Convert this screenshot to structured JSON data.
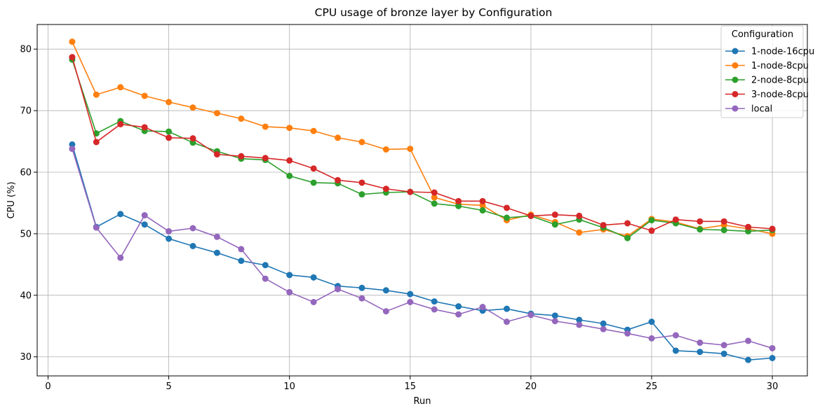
{
  "chart_data": {
    "type": "line",
    "title": "CPU usage of bronze layer by Configuration",
    "xlabel": "Run",
    "ylabel": "CPU (%)",
    "xlim": [
      -0.45,
      31.45
    ],
    "ylim": [
      26.9,
      84.0
    ],
    "xticks": [
      0,
      5,
      10,
      15,
      20,
      25,
      30
    ],
    "yticks": [
      30,
      40,
      50,
      60,
      70,
      80
    ],
    "grid": true,
    "legend": {
      "title": "Configuration",
      "placement": "top-right"
    },
    "x": [
      1,
      2,
      3,
      4,
      5,
      6,
      7,
      8,
      9,
      10,
      11,
      12,
      13,
      14,
      15,
      16,
      17,
      18,
      19,
      20,
      21,
      22,
      23,
      24,
      25,
      26,
      27,
      28,
      29,
      30
    ],
    "series": [
      {
        "name": "1-node-16cpu",
        "color": "#1f77b4",
        "values": [
          64.5,
          51.1,
          53.2,
          51.5,
          49.2,
          48.0,
          46.9,
          45.6,
          44.9,
          43.3,
          42.9,
          41.5,
          41.2,
          40.8,
          40.2,
          39.0,
          38.2,
          37.5,
          37.8,
          37.0,
          36.7,
          36.0,
          35.4,
          34.4,
          35.7,
          31.0,
          30.8,
          30.5,
          29.5,
          29.8
        ]
      },
      {
        "name": "1-node-8cpu",
        "color": "#ff7f0e",
        "values": [
          81.2,
          72.6,
          73.8,
          72.4,
          71.4,
          70.5,
          69.6,
          68.7,
          67.4,
          67.2,
          66.7,
          65.6,
          64.9,
          63.7,
          63.8,
          55.9,
          54.8,
          54.6,
          52.2,
          53.1,
          51.9,
          50.2,
          50.7,
          49.6,
          52.4,
          51.9,
          50.8,
          51.4,
          50.8,
          50.0
        ]
      },
      {
        "name": "2-node-8cpu",
        "color": "#2ca02c",
        "values": [
          78.3,
          66.3,
          68.3,
          66.7,
          66.6,
          64.8,
          63.4,
          62.2,
          62.0,
          59.4,
          58.3,
          58.2,
          56.4,
          56.7,
          56.8,
          54.9,
          54.5,
          53.8,
          52.6,
          52.9,
          51.5,
          52.3,
          51.0,
          49.3,
          52.2,
          51.7,
          50.7,
          50.6,
          50.4,
          50.6
        ]
      },
      {
        "name": "3-node-8cpu",
        "color": "#d62728",
        "values": [
          78.7,
          64.9,
          67.8,
          67.3,
          65.6,
          65.5,
          62.9,
          62.6,
          62.3,
          61.9,
          60.6,
          58.7,
          58.3,
          57.3,
          56.8,
          56.7,
          55.3,
          55.3,
          54.2,
          52.9,
          53.1,
          52.9,
          51.4,
          51.7,
          50.5,
          52.3,
          52.0,
          52.0,
          51.1,
          50.8
        ]
      },
      {
        "name": "local",
        "color": "#9467bd",
        "values": [
          63.8,
          51.0,
          46.1,
          53.0,
          50.4,
          50.9,
          49.5,
          47.5,
          42.7,
          40.5,
          38.9,
          41.0,
          39.5,
          37.4,
          38.9,
          37.7,
          36.9,
          38.1,
          35.7,
          36.8,
          35.8,
          35.2,
          34.5,
          33.8,
          33.0,
          33.5,
          32.3,
          31.9,
          32.6,
          31.4
        ]
      }
    ]
  }
}
